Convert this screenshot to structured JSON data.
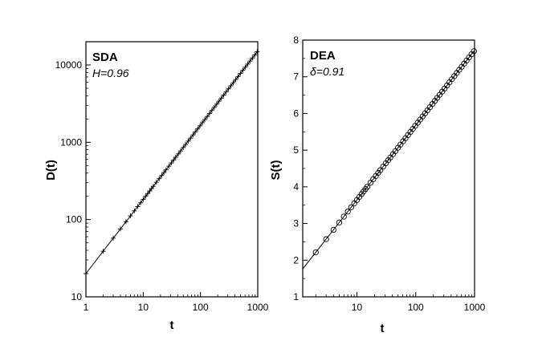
{
  "chart_data": [
    {
      "type": "scatter",
      "panel_label": "SDA",
      "param_text": "H=0.96",
      "xlabel": "t",
      "ylabel": "D(t)",
      "xscale": "log",
      "yscale": "log",
      "xlim": [
        1,
        1000
      ],
      "ylim": [
        10,
        20000
      ],
      "x_ticks": [
        1,
        10,
        100,
        1000
      ],
      "x_tick_labels": [
        "1",
        "10",
        "100",
        "1000"
      ],
      "y_ticks": [
        10,
        100,
        1000,
        10000
      ],
      "y_tick_labels": [
        "10",
        "100",
        "1000",
        "10000"
      ],
      "marker": "plus",
      "grid": false,
      "series": [
        {
          "marker": "plus",
          "t_range": [
            1,
            1000
          ],
          "points_per_decade": 24,
          "y_at_t1": 20,
          "exponent": 0.96
        },
        {
          "style": "line",
          "t_range": [
            1,
            1000
          ],
          "y_at_t1": 20,
          "exponent": 0.96
        }
      ],
      "fit_line": {
        "exponent": 0.96,
        "y_at_t1": 20
      }
    },
    {
      "type": "scatter",
      "panel_label": "DEA",
      "param_text": "δ=0.91",
      "xlabel": "t",
      "ylabel": "S(t)",
      "xscale": "log",
      "yscale": "linear",
      "xlim": [
        1.2,
        1000
      ],
      "ylim": [
        1,
        8
      ],
      "x_ticks": [
        10,
        100,
        1000
      ],
      "x_tick_labels": [
        "10",
        "100",
        "1000"
      ],
      "y_ticks": [
        1,
        2,
        3,
        4,
        5,
        6,
        7,
        8
      ],
      "y_tick_labels": [
        "1",
        "2",
        "3",
        "4",
        "5",
        "6",
        "7",
        "8"
      ],
      "marker": "circle",
      "grid": false,
      "series": [
        {
          "marker": "circle",
          "t_range": [
            2,
            1000
          ],
          "points_per_decade": 24,
          "intercept": 1.6,
          "slope_per_decade": 2.04
        },
        {
          "style": "line",
          "t_range": [
            1.2,
            1000
          ],
          "intercept": 1.6,
          "slope_per_decade": 2.04
        }
      ],
      "fit_line": {
        "intercept": 1.6,
        "slope_per_decade": 2.04
      }
    }
  ]
}
